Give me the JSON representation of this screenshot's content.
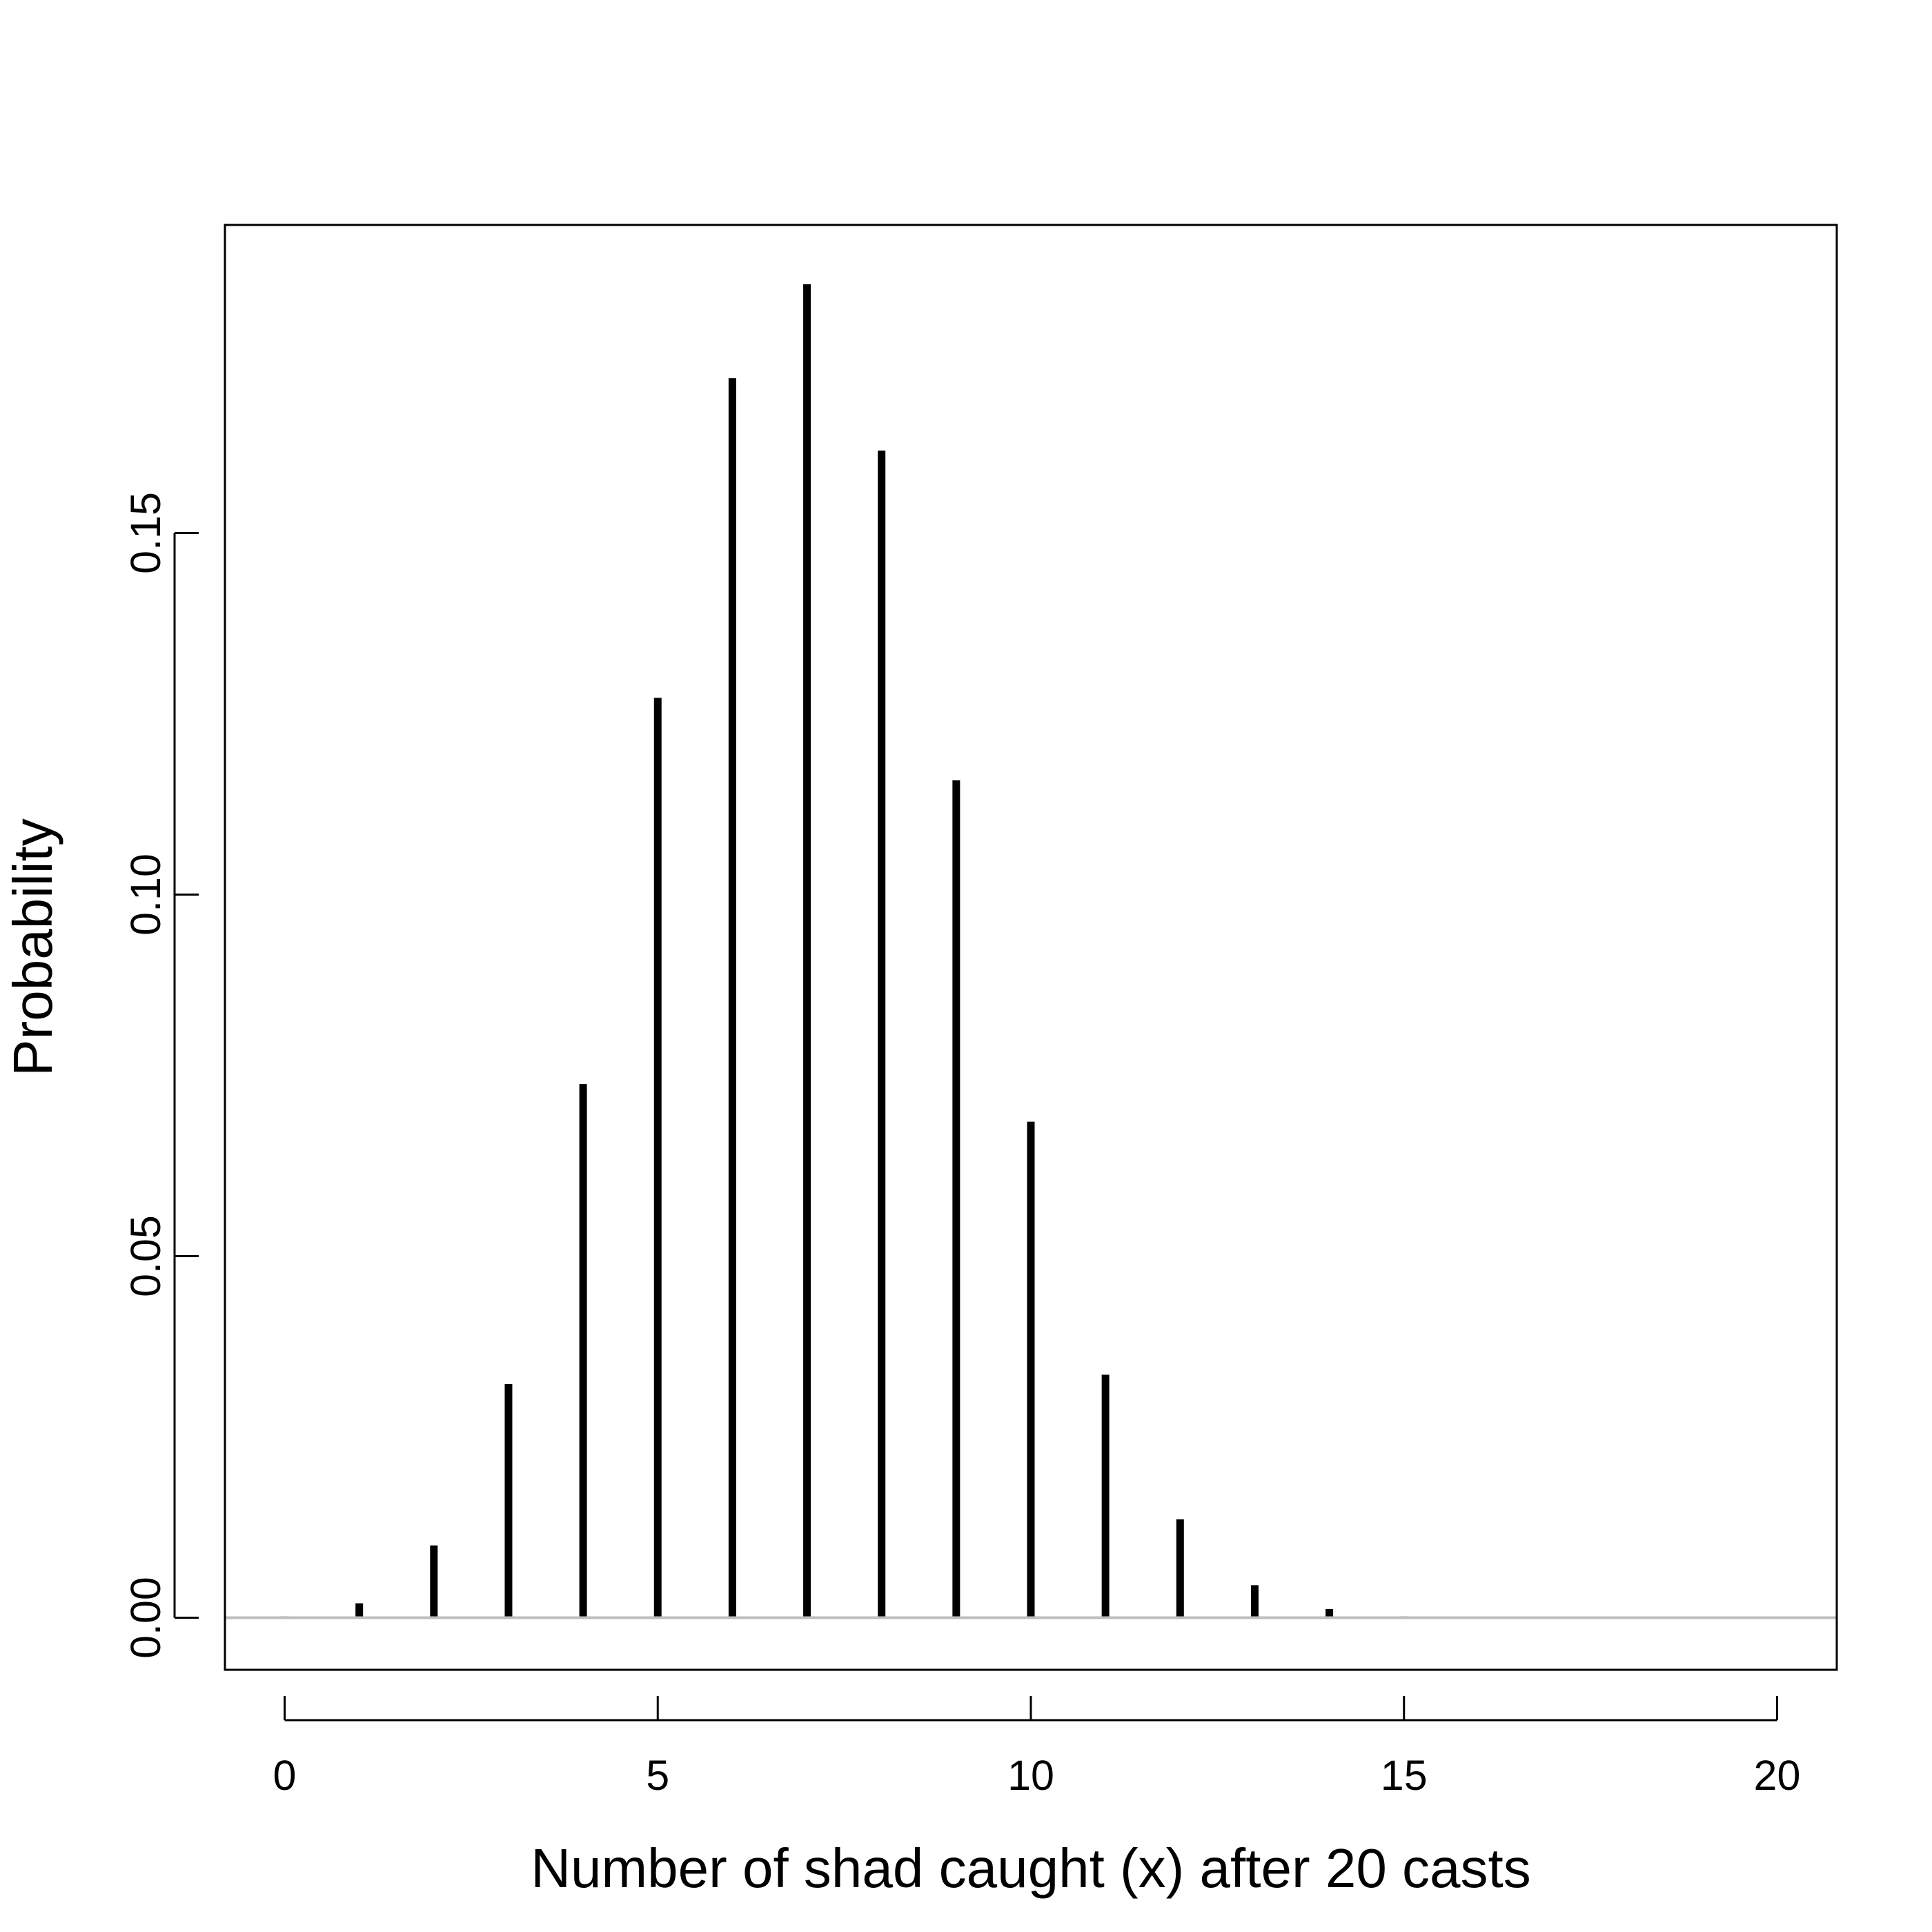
{
  "chart_data": {
    "type": "bar",
    "style": "vertical lines (type=h)",
    "title": "",
    "xlabel": "Number of shad caught (x) after 20 casts",
    "ylabel": "Probability",
    "x": [
      0,
      1,
      2,
      3,
      4,
      5,
      6,
      7,
      8,
      9,
      10,
      11,
      12,
      13,
      14,
      15,
      16,
      17,
      18,
      19,
      20
    ],
    "values": [
      0.0002,
      0.002,
      0.01,
      0.0323,
      0.0738,
      0.1272,
      0.1714,
      0.1844,
      0.1614,
      0.1158,
      0.0686,
      0.0336,
      0.0136,
      0.0045,
      0.0012,
      0.0002,
      0.0,
      0.0,
      0.0,
      0.0,
      0.0
    ],
    "xlim": [
      -0.8,
      20.8
    ],
    "ylim": [
      -0.0072,
      0.1926
    ],
    "xticks": [
      "0",
      "5",
      "10",
      "15",
      "20"
    ],
    "xtick_values": [
      0,
      5,
      10,
      15,
      20
    ],
    "yticks": [
      "0.00",
      "0.05",
      "0.10",
      "0.15"
    ],
    "ytick_values": [
      0.0,
      0.05,
      0.1,
      0.15
    ],
    "baseline": 0,
    "bar_color": "#000000",
    "baseline_color": "#bebebe",
    "grid": false,
    "legend": "none"
  }
}
